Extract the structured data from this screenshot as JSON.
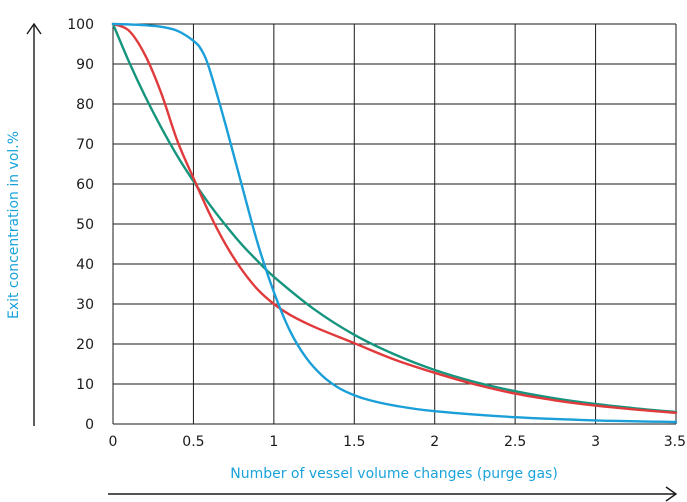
{
  "chart_data": {
    "type": "line",
    "title": "",
    "xlabel": "Number of vessel volume changes (purge gas)",
    "ylabel": "Exit concentration in vol.%",
    "xlim": [
      0,
      3.5
    ],
    "ylim": [
      0,
      100
    ],
    "x_ticks": [
      "0",
      "0.5",
      "1",
      "1.5",
      "2",
      "2.5",
      "3",
      "3.5"
    ],
    "y_ticks": [
      "0",
      "10",
      "20",
      "30",
      "40",
      "50",
      "60",
      "70",
      "80",
      "90",
      "100"
    ],
    "grid": true,
    "legend": "none",
    "colors": {
      "label": "#1AA3DA",
      "grid": "#1a1a1a"
    },
    "series": [
      {
        "color": "#1A9FD8",
        "x": [
          0,
          0.1,
          0.2,
          0.3,
          0.4,
          0.5,
          0.55,
          0.6,
          0.7,
          0.8,
          0.9,
          1.0,
          1.1,
          1.2,
          1.3,
          1.4,
          1.5,
          1.6,
          1.75,
          2.0,
          2.5,
          3.0,
          3.5
        ],
        "y": [
          100,
          99.9,
          99.7,
          99.3,
          98.3,
          95.8,
          93.5,
          88.7,
          74.8,
          59.8,
          45.1,
          33.0,
          23.3,
          16.6,
          12.1,
          9.1,
          7.2,
          5.9,
          4.6,
          3.2,
          1.7,
          0.9,
          0.5
        ]
      },
      {
        "color": "#E03A3C",
        "x": [
          0,
          0.1,
          0.2,
          0.3,
          0.4,
          0.5,
          0.6,
          0.7,
          0.8,
          0.9,
          1.0,
          1.1,
          1.25,
          1.5,
          1.75,
          2.0,
          2.25,
          2.5,
          2.75,
          3.0,
          3.25,
          3.5
        ],
        "y": [
          100,
          98.3,
          92.2,
          82.7,
          70.8,
          61.5,
          52.6,
          44.9,
          38.6,
          33.6,
          30.0,
          27.3,
          24.3,
          20.2,
          16.1,
          12.8,
          9.9,
          7.6,
          5.9,
          4.6,
          3.6,
          2.8
        ]
      },
      {
        "color": "#16957E",
        "x": [
          0,
          0.1,
          0.2,
          0.3,
          0.4,
          0.5,
          0.6,
          0.7,
          0.8,
          0.9,
          1.0,
          1.25,
          1.5,
          1.75,
          2.0,
          2.25,
          2.5,
          2.75,
          3.0,
          3.25,
          3.5
        ],
        "y": [
          100,
          90.5,
          81.9,
          74.1,
          67.0,
          60.7,
          54.9,
          49.7,
          44.9,
          40.7,
          36.8,
          28.7,
          22.3,
          17.4,
          13.5,
          10.5,
          8.2,
          6.4,
          5.0,
          3.9,
          3.0
        ]
      }
    ]
  }
}
